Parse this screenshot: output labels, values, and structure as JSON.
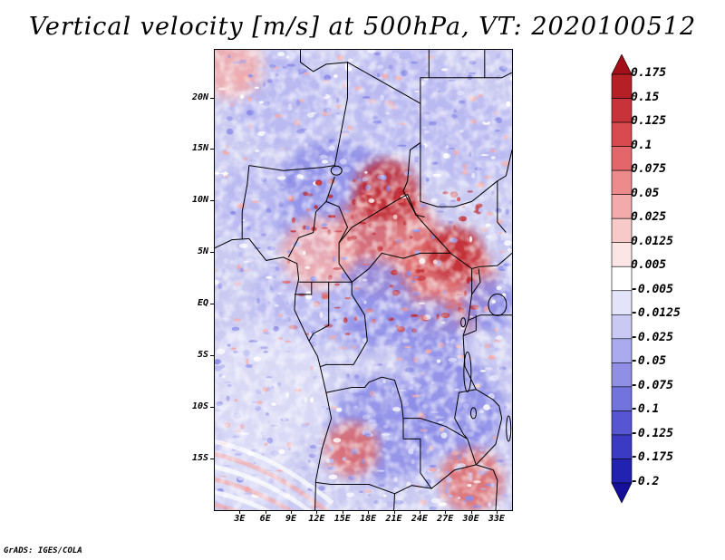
{
  "title": "Vertical velocity [m/s] at 500hPa, VT: 2020100512",
  "credit": "GrADS: IGES/COLA",
  "lat_labels": [
    "20N",
    "15N",
    "10N",
    "5N",
    "EQ",
    "5S",
    "10S",
    "15S"
  ],
  "lat_values": [
    20,
    15,
    10,
    5,
    0,
    -5,
    -10,
    -15
  ],
  "lon_labels": [
    "3E",
    "6E",
    "9E",
    "12E",
    "15E",
    "18E",
    "21E",
    "24E",
    "27E",
    "30E",
    "33E"
  ],
  "lon_values": [
    3,
    6,
    9,
    12,
    15,
    18,
    21,
    24,
    27,
    30,
    33
  ],
  "map_extent": {
    "lon_min": 0,
    "lon_max": 34.7,
    "lat_min": -19.9,
    "lat_max": 24.7
  },
  "colorbar": {
    "labels": [
      "0.175",
      "0.15",
      "0.125",
      "0.1",
      "0.075",
      "0.05",
      "0.025",
      "0.0125",
      "0.005",
      "-0.005",
      "-0.0125",
      "-0.025",
      "-0.05",
      "-0.075",
      "-0.1",
      "-0.125",
      "-0.175",
      "-0.2"
    ],
    "colors": [
      "#a31019",
      "#b51f26",
      "#c8333a",
      "#d84a4f",
      "#e3676a",
      "#ec8a8c",
      "#f3aaab",
      "#f8c9c9",
      "#fce5e5",
      "#ffffff",
      "#e3e3fa",
      "#c9c9f4",
      "#aaaaee",
      "#8f8fe6",
      "#7373de",
      "#5656d2",
      "#3a3ac3",
      "#2222b0",
      "#150f9a"
    ]
  },
  "palette": {
    "blue_mid": "#8c8ce8",
    "blue_light": "#b8b8f2",
    "blue_pale": "#dcdcf8",
    "red_light": "#f2aaaa",
    "red_mid": "#e06a6a",
    "red_dark": "#c0282e",
    "border": "#000000"
  }
}
